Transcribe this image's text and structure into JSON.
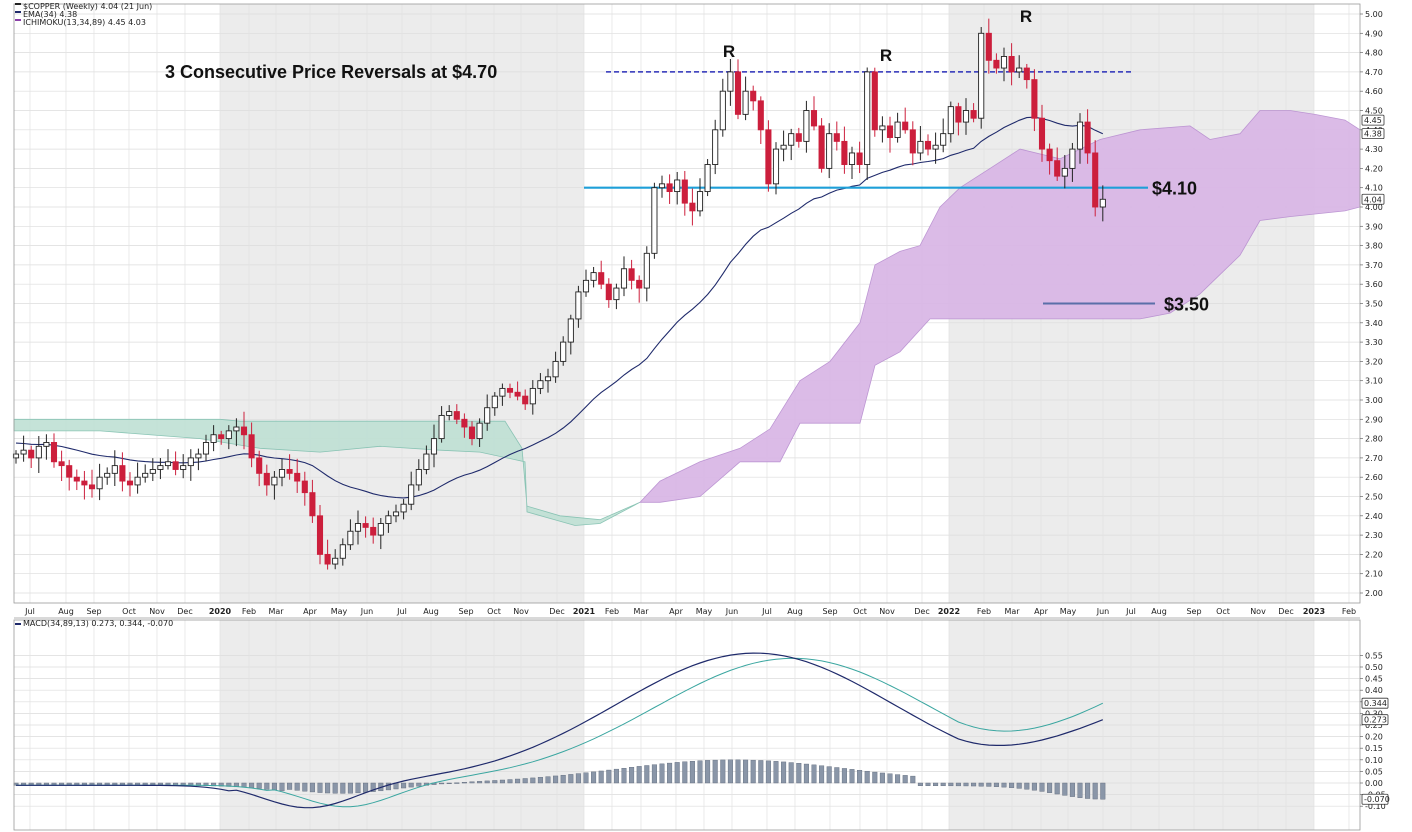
{
  "chart_data": [
    {
      "type": "candlestick",
      "title": "$COPPER (Weekly) 4.04 (21 Jun)",
      "legend": [
        {
          "text": "$COPPER (Weekly) 4.04 (21 Jun)",
          "color": "#222222"
        },
        {
          "text": "EMA(34) 4.38",
          "color": "#1f2a6b"
        },
        {
          "text": "ICHIMOKU(13,34,89) 4.45 4.03",
          "color": "#8a3fa8"
        }
      ],
      "ylim": [
        1.95,
        5.05
      ],
      "yticks": [
        "5.00",
        "4.90",
        "4.80",
        "4.70",
        "4.60",
        "4.50",
        "4.40",
        "4.30",
        "4.20",
        "4.10",
        "4.00",
        "3.90",
        "3.80",
        "3.70",
        "3.60",
        "3.50",
        "3.40",
        "3.30",
        "3.20",
        "3.10",
        "3.00",
        "2.90",
        "2.80",
        "2.70",
        "2.60",
        "2.50",
        "2.40",
        "2.30",
        "2.20",
        "2.10",
        "2.00"
      ],
      "x_labels": [
        {
          "label": "Jul",
          "bold": false
        },
        {
          "label": "Aug",
          "bold": false
        },
        {
          "label": "Sep",
          "bold": false
        },
        {
          "label": "Oct",
          "bold": false
        },
        {
          "label": "Nov",
          "bold": false
        },
        {
          "label": "Dec",
          "bold": false
        },
        {
          "label": "2020",
          "bold": true
        },
        {
          "label": "Feb",
          "bold": false
        },
        {
          "label": "Mar",
          "bold": false
        },
        {
          "label": "Apr",
          "bold": false
        },
        {
          "label": "May",
          "bold": false
        },
        {
          "label": "Jun",
          "bold": false
        },
        {
          "label": "Jul",
          "bold": false
        },
        {
          "label": "Aug",
          "bold": false
        },
        {
          "label": "Sep",
          "bold": false
        },
        {
          "label": "Oct",
          "bold": false
        },
        {
          "label": "Nov",
          "bold": false
        },
        {
          "label": "Dec",
          "bold": false
        },
        {
          "label": "2021",
          "bold": true
        },
        {
          "label": "Feb",
          "bold": false
        },
        {
          "label": "Mar",
          "bold": false
        },
        {
          "label": "Apr",
          "bold": false
        },
        {
          "label": "May",
          "bold": false
        },
        {
          "label": "Jun",
          "bold": false
        },
        {
          "label": "Jul",
          "bold": false
        },
        {
          "label": "Aug",
          "bold": false
        },
        {
          "label": "Sep",
          "bold": false
        },
        {
          "label": "Oct",
          "bold": false
        },
        {
          "label": "Nov",
          "bold": false
        },
        {
          "label": "Dec",
          "bold": false
        },
        {
          "label": "2022",
          "bold": true
        },
        {
          "label": "Feb",
          "bold": false
        },
        {
          "label": "Mar",
          "bold": false
        },
        {
          "label": "Apr",
          "bold": false
        },
        {
          "label": "May",
          "bold": false
        },
        {
          "label": "Jun",
          "bold": false
        },
        {
          "label": "Jul",
          "bold": false
        },
        {
          "label": "Aug",
          "bold": false
        },
        {
          "label": "Sep",
          "bold": false
        },
        {
          "label": "Oct",
          "bold": false
        },
        {
          "label": "Nov",
          "bold": false
        },
        {
          "label": "Dec",
          "bold": false
        },
        {
          "label": "2023",
          "bold": true
        },
        {
          "label": "Feb",
          "bold": false
        }
      ],
      "weekly_close": [
        2.72,
        2.74,
        2.7,
        2.76,
        2.78,
        2.68,
        2.66,
        2.6,
        2.58,
        2.56,
        2.54,
        2.6,
        2.62,
        2.66,
        2.58,
        2.56,
        2.6,
        2.62,
        2.64,
        2.66,
        2.68,
        2.64,
        2.66,
        2.7,
        2.72,
        2.78,
        2.82,
        2.8,
        2.84,
        2.86,
        2.82,
        2.7,
        2.62,
        2.56,
        2.6,
        2.64,
        2.62,
        2.58,
        2.52,
        2.4,
        2.2,
        2.15,
        2.18,
        2.25,
        2.32,
        2.36,
        2.34,
        2.3,
        2.36,
        2.4,
        2.42,
        2.46,
        2.56,
        2.64,
        2.72,
        2.8,
        2.92,
        2.94,
        2.9,
        2.86,
        2.8,
        2.88,
        2.96,
        3.02,
        3.06,
        3.04,
        3.02,
        2.98,
        3.06,
        3.1,
        3.12,
        3.2,
        3.3,
        3.42,
        3.56,
        3.62,
        3.66,
        3.6,
        3.52,
        3.58,
        3.68,
        3.62,
        3.58,
        3.76,
        4.1,
        4.12,
        4.08,
        4.14,
        4.02,
        3.98,
        4.08,
        4.22,
        4.4,
        4.6,
        4.7,
        4.48,
        4.6,
        4.55,
        4.4,
        4.12,
        4.3,
        4.32,
        4.38,
        4.34,
        4.5,
        4.42,
        4.2,
        4.38,
        4.34,
        4.22,
        4.28,
        4.22,
        4.7,
        4.4,
        4.42,
        4.36,
        4.44,
        4.4,
        4.28,
        4.34,
        4.3,
        4.32,
        4.38,
        4.52,
        4.44,
        4.5,
        4.46,
        4.9,
        4.76,
        4.72,
        4.78,
        4.7,
        4.72,
        4.66,
        4.46,
        4.3,
        4.24,
        4.16,
        4.2,
        4.3,
        4.44,
        4.28,
        4.0,
        4.04
      ],
      "ema_label": "EMA(34) 4.38",
      "ema_last": 4.38,
      "ichimoku_label": "ICHIMOKU(13,34,89) 4.45 4.03",
      "price_tags": [
        4.45,
        4.38,
        4.04
      ],
      "price_tag_text": [
        "4.45",
        "4.38",
        "4.04"
      ],
      "annotations": [
        {
          "text": "3 Consecutive Price Reversals at $4.70"
        },
        {
          "text": "$4.10",
          "value": 4.1
        },
        {
          "text": "$3.50",
          "value": 3.5
        }
      ],
      "reversal_marker": "R",
      "resistance": 4.7,
      "support": 4.1,
      "target": 3.5,
      "grid": true
    },
    {
      "type": "line",
      "title": "MACD(34,89,13) 0.273, 0.344, -0.070",
      "ylim": [
        -0.13,
        0.58
      ],
      "yticks": [
        "0.55",
        "0.50",
        "0.45",
        "0.40",
        "0.35",
        "0.30",
        "0.25",
        "0.20",
        "0.15",
        "0.10",
        "0.05",
        "0.00",
        "-0.05",
        "-0.10"
      ],
      "macd_last": 0.273,
      "signal_last": 0.344,
      "hist_last": -0.07,
      "tag_text": [
        "0.344",
        "0.273",
        "-0.070"
      ]
    }
  ],
  "colors": {
    "up_candle": "#222222",
    "down_candle": "#cc1f3c",
    "ema": "#1f2a6b",
    "resistance": "#2a2fb8",
    "support": "#1e9fd8",
    "target": "#5a6fa8",
    "cloud_bull": "#bfe0d4",
    "cloud_bear": "#d9b6e6",
    "macd": "#1f2a6b",
    "signal": "#3aa6a0",
    "hist": "#8a96a8"
  }
}
